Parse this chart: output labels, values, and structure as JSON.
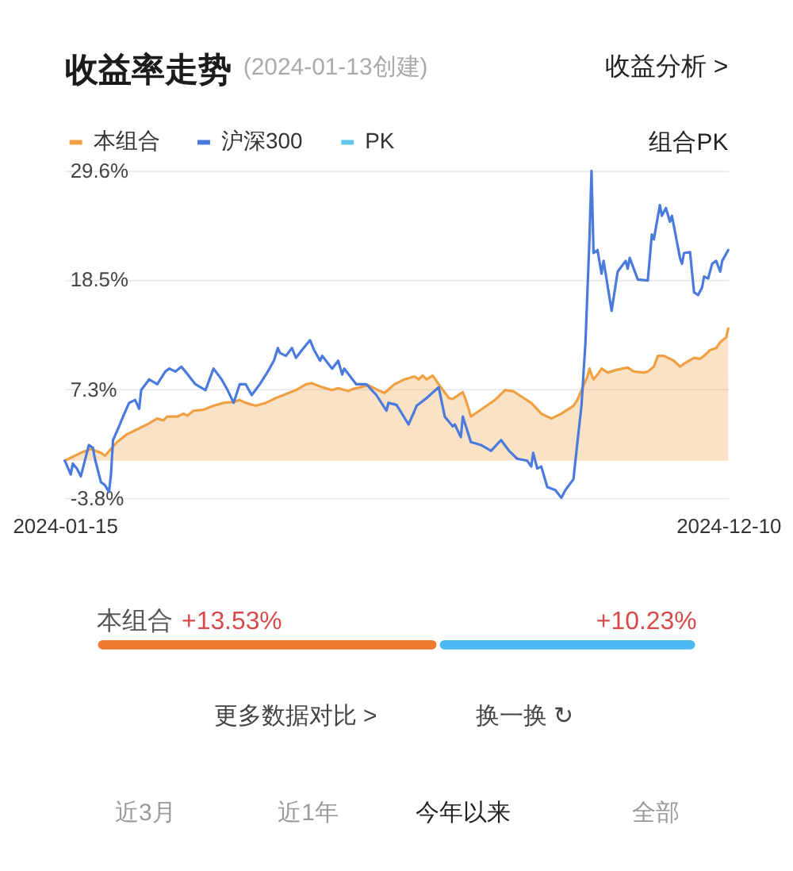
{
  "chart_data": [
    {
      "type": "line",
      "title": "收益率走势",
      "subtitle": "(2024-01-13创建)",
      "annotations": [
        "收益分析 >",
        "组合PK"
      ],
      "legend": "top left",
      "grid": "y",
      "xlim": [
        "2024-01-15",
        "2024-12-10"
      ],
      "xticks": [
        "2024-01-15",
        "2024-12-10"
      ],
      "ylim": [
        -3.8,
        29.6
      ],
      "yticks": [
        {
          "value": -3.8,
          "label": "-3.8%"
        },
        {
          "value": 7.3,
          "label": "7.3%"
        },
        {
          "value": 18.5,
          "label": "18.5%"
        },
        {
          "value": 29.6,
          "label": "29.6%"
        }
      ],
      "series": [
        {
          "name": "本组合",
          "type": "area",
          "color": "#efa043",
          "x": [
            "2024-01-15",
            "2024-01-23",
            "2024-01-28",
            "2024-02-02",
            "2024-02-04",
            "2024-02-10",
            "2024-02-15",
            "2024-02-20",
            "2024-02-25",
            "2024-03-01",
            "2024-03-04",
            "2024-03-06",
            "2024-03-11",
            "2024-03-14",
            "2024-03-16",
            "2024-03-19",
            "2024-03-24",
            "2024-03-29",
            "2024-04-03",
            "2024-04-08",
            "2024-04-11",
            "2024-04-14",
            "2024-04-19",
            "2024-04-24",
            "2024-04-29",
            "2024-05-04",
            "2024-05-09",
            "2024-05-14",
            "2024-05-17",
            "2024-05-22",
            "2024-05-27",
            "2024-05-30",
            "2024-06-04",
            "2024-06-06",
            "2024-06-14",
            "2024-06-19",
            "2024-06-22",
            "2024-06-27",
            "2024-07-02",
            "2024-07-07",
            "2024-07-09",
            "2024-07-11",
            "2024-07-13",
            "2024-07-16",
            "2024-07-19",
            "2024-07-24",
            "2024-07-26",
            "2024-07-31",
            "2024-08-02",
            "2024-08-04",
            "2024-08-09",
            "2024-08-16",
            "2024-08-21",
            "2024-08-25",
            "2024-08-28",
            "2024-09-03",
            "2024-09-08",
            "2024-09-13",
            "2024-09-18",
            "2024-09-24",
            "2024-09-26",
            "2024-09-28",
            "2024-10-01",
            "2024-10-02",
            "2024-10-03",
            "2024-10-04",
            "2024-10-06",
            "2024-10-08",
            "2024-10-11",
            "2024-10-16",
            "2024-10-21",
            "2024-10-24",
            "2024-10-29",
            "2024-10-31",
            "2024-11-03",
            "2024-11-05",
            "2024-11-08",
            "2024-11-13",
            "2024-11-16",
            "2024-11-18",
            "2024-11-23",
            "2024-11-26",
            "2024-11-28",
            "2024-12-01",
            "2024-12-04",
            "2024-12-06",
            "2024-12-09",
            "2024-12-10"
          ],
          "values": [
            0,
            0.8,
            1.2,
            0.8,
            0.5,
            1.9,
            2.7,
            3.2,
            3.7,
            4.3,
            4.1,
            4.5,
            4.5,
            4.8,
            4.6,
            5.1,
            5.2,
            5.6,
            5.9,
            6.0,
            6.2,
            5.9,
            5.6,
            5.9,
            6.4,
            6.8,
            7.2,
            7.8,
            7.9,
            7.5,
            7.2,
            7.4,
            7.1,
            7.3,
            7.7,
            7.2,
            6.9,
            7.8,
            8.3,
            8.6,
            8.3,
            8.7,
            8.3,
            8.7,
            7.8,
            6.4,
            6.3,
            7.0,
            5.9,
            4.5,
            5.2,
            6.2,
            7.2,
            7.1,
            6.7,
            5.9,
            4.8,
            4.3,
            4.8,
            5.6,
            6.2,
            7.2,
            8.6,
            9.4,
            8.8,
            8.3,
            8.8,
            9.4,
            9.0,
            9.3,
            9.5,
            9.1,
            9.0,
            9.1,
            9.6,
            10.7,
            10.7,
            10.2,
            9.6,
            9.9,
            10.5,
            10.4,
            10.7,
            11.3,
            11.5,
            12.1,
            12.6,
            13.5
          ]
        },
        {
          "name": "沪深300",
          "type": "line",
          "color": "#4a7bdc",
          "x": [
            "2024-01-15",
            "2024-01-18",
            "2024-01-19",
            "2024-01-21",
            "2024-01-23",
            "2024-01-25",
            "2024-01-27",
            "2024-01-29",
            "2024-01-30",
            "2024-02-02",
            "2024-02-04",
            "2024-02-06",
            "2024-02-07",
            "2024-02-08",
            "2024-02-11",
            "2024-02-13",
            "2024-02-16",
            "2024-02-19",
            "2024-02-21",
            "2024-02-22",
            "2024-02-26",
            "2024-03-01",
            "2024-03-05",
            "2024-03-07",
            "2024-03-10",
            "2024-03-13",
            "2024-03-15",
            "2024-03-20",
            "2024-03-25",
            "2024-03-29",
            "2024-04-02",
            "2024-04-05",
            "2024-04-08",
            "2024-04-11",
            "2024-04-14",
            "2024-04-17",
            "2024-04-21",
            "2024-04-25",
            "2024-04-28",
            "2024-04-30",
            "2024-05-01",
            "2024-05-04",
            "2024-05-07",
            "2024-05-09",
            "2024-05-12",
            "2024-05-16",
            "2024-05-18",
            "2024-05-21",
            "2024-05-22",
            "2024-05-27",
            "2024-05-30",
            "2024-06-01",
            "2024-06-02",
            "2024-06-08",
            "2024-06-13",
            "2024-06-18",
            "2024-06-23",
            "2024-06-24",
            "2024-06-28",
            "2024-07-04",
            "2024-07-07",
            "2024-07-08",
            "2024-07-13",
            "2024-07-19",
            "2024-07-22",
            "2024-07-26",
            "2024-07-27",
            "2024-07-30",
            "2024-07-31",
            "2024-08-04",
            "2024-08-09",
            "2024-08-14",
            "2024-08-19",
            "2024-08-23",
            "2024-08-27",
            "2024-09-01",
            "2024-09-03",
            "2024-09-04",
            "2024-09-06",
            "2024-09-08",
            "2024-09-11",
            "2024-09-15",
            "2024-09-18",
            "2024-09-20",
            "2024-09-24",
            "2024-09-26",
            "2024-09-28",
            "2024-09-30",
            "2024-10-02",
            "2024-10-03",
            "2024-10-04",
            "2024-10-06",
            "2024-10-08",
            "2024-10-09",
            "2024-10-13",
            "2024-10-16",
            "2024-10-20",
            "2024-10-21",
            "2024-10-22",
            "2024-10-26",
            "2024-10-31",
            "2024-11-02",
            "2024-11-03",
            "2024-11-06",
            "2024-11-07",
            "2024-11-09",
            "2024-11-11",
            "2024-11-12",
            "2024-11-16",
            "2024-11-17",
            "2024-11-18",
            "2024-11-21",
            "2024-11-23",
            "2024-11-25",
            "2024-11-27",
            "2024-11-28",
            "2024-11-30",
            "2024-12-02",
            "2024-12-04",
            "2024-12-06",
            "2024-12-07",
            "2024-12-10"
          ],
          "values": [
            0,
            -1.4,
            -0.3,
            -0.8,
            -1.6,
            0.0,
            1.6,
            1.3,
            0.2,
            -2.2,
            -2.5,
            -3.2,
            -1.4,
            2.1,
            3.5,
            4.5,
            5.9,
            6.2,
            5.3,
            7.2,
            8.3,
            7.8,
            9.1,
            9.4,
            9.1,
            9.6,
            9.1,
            7.8,
            7.2,
            9.4,
            8.3,
            7.2,
            5.9,
            7.8,
            7.8,
            6.7,
            7.8,
            9.1,
            10.2,
            11.5,
            11.0,
            10.7,
            11.5,
            10.5,
            11.3,
            12.3,
            11.3,
            10.2,
            10.7,
            9.4,
            10.2,
            8.8,
            9.4,
            7.8,
            7.8,
            6.7,
            5.1,
            5.9,
            5.7,
            3.7,
            5.1,
            5.6,
            6.4,
            7.5,
            4.5,
            3.5,
            3.7,
            2.4,
            4.5,
            1.9,
            1.6,
            1.0,
            2.1,
            1.0,
            0.2,
            0.0,
            -0.6,
            0.8,
            -0.8,
            -0.6,
            -2.7,
            -3.0,
            -3.8,
            -3.0,
            -1.9,
            1.9,
            5.6,
            12.1,
            22.8,
            29.6,
            21.2,
            21.5,
            19.1,
            20.4,
            15.3,
            19.3,
            20.4,
            19.6,
            20.7,
            18.5,
            18.4,
            23.1,
            22.6,
            26.1,
            25.0,
            25.8,
            24.4,
            25.0,
            20.7,
            20.1,
            21.2,
            21.3,
            17.2,
            16.9,
            17.7,
            18.8,
            18.6,
            20.1,
            20.4,
            19.3,
            20.4,
            21.5
          ]
        },
        {
          "name": "PK",
          "type": "line",
          "color": "#5fc6ea"
        }
      ]
    },
    {
      "type": "bar",
      "orientation": "horizontal",
      "stacked": true,
      "categories": [
        null
      ],
      "series": [
        {
          "name": "本组合",
          "color": "#f07a30",
          "values": [
            13.53
          ],
          "value_labels": [
            "+13.53%"
          ]
        },
        {
          "color": "#4cb8f2",
          "values": [
            10.23
          ],
          "value_labels": [
            "+10.23%"
          ]
        }
      ],
      "annotations": [
        "更多数据对比 >",
        "换一换 ↻",
        "近3月",
        "近1年",
        "今年以来",
        "全部"
      ]
    }
  ]
}
